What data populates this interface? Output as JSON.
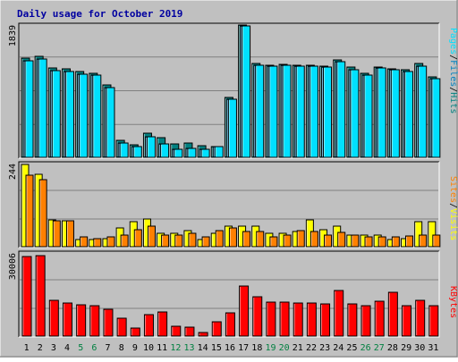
{
  "title": "Daily usage for October 2019",
  "colors": {
    "background": "#c0c0c0",
    "hits": "#008080",
    "files": "#0080c0",
    "pages": "#00e0ff",
    "visits": "#ffff00",
    "sites": "#ff8000",
    "kbytes": "#ff0000",
    "weekend_label": "#008040",
    "weekday_label": "#000000"
  },
  "chart_data": [
    {
      "type": "bar",
      "panel": "hits_files_pages",
      "max_label": "1839",
      "ylim": [
        0,
        1839
      ],
      "legend": [
        "Pages",
        "/",
        "Files",
        "/",
        "Hits"
      ],
      "categories": [
        "1",
        "2",
        "3",
        "4",
        "5",
        "6",
        "7",
        "8",
        "9",
        "10",
        "11",
        "12",
        "13",
        "14",
        "15",
        "16",
        "17",
        "18",
        "19",
        "20",
        "21",
        "22",
        "23",
        "24",
        "25",
        "26",
        "27",
        "28",
        "29",
        "30",
        "31"
      ],
      "series": [
        {
          "name": "Hits",
          "values": [
            1370,
            1395,
            1240,
            1225,
            1185,
            1160,
            1000,
            230,
            170,
            335,
            270,
            180,
            200,
            155,
            150,
            825,
            1825,
            1295,
            1270,
            1280,
            1275,
            1270,
            1260,
            1345,
            1245,
            1160,
            1250,
            1225,
            1210,
            1290,
            1115
          ]
        },
        {
          "name": "Files",
          "values": [
            1330,
            1355,
            1200,
            1190,
            1150,
            1130,
            965,
            200,
            150,
            280,
            190,
            115,
            120,
            105,
            145,
            805,
            1815,
            1270,
            1255,
            1270,
            1265,
            1260,
            1250,
            1320,
            1210,
            1130,
            1230,
            1205,
            1185,
            1260,
            1080
          ]
        },
        {
          "name": "Pages",
          "values": [
            1330,
            1355,
            1200,
            1190,
            1150,
            1130,
            965,
            200,
            150,
            280,
            190,
            115,
            120,
            105,
            145,
            805,
            1815,
            1270,
            1255,
            1270,
            1265,
            1260,
            1250,
            1320,
            1210,
            1130,
            1230,
            1205,
            1185,
            1260,
            1080
          ]
        }
      ]
    },
    {
      "type": "bar",
      "panel": "visits_sites",
      "max_label": "244",
      "ylim": [
        0,
        244
      ],
      "legend": [
        "Sites",
        "/",
        "Visits"
      ],
      "categories": [
        "1",
        "2",
        "3",
        "4",
        "5",
        "6",
        "7",
        "8",
        "9",
        "10",
        "11",
        "12",
        "13",
        "14",
        "15",
        "16",
        "17",
        "18",
        "19",
        "20",
        "21",
        "22",
        "23",
        "24",
        "25",
        "26",
        "27",
        "28",
        "29",
        "30",
        "31"
      ],
      "series": [
        {
          "name": "Visits",
          "values": [
            244,
            215,
            80,
            78,
            22,
            20,
            24,
            55,
            75,
            82,
            40,
            40,
            48,
            22,
            40,
            60,
            62,
            60,
            40,
            40,
            45,
            79,
            50,
            62,
            35,
            35,
            35,
            22,
            25,
            73,
            73
          ]
        },
        {
          "name": "Sites",
          "values": [
            213,
            200,
            76,
            76,
            30,
            25,
            30,
            35,
            50,
            60,
            35,
            35,
            40,
            28,
            47,
            55,
            45,
            45,
            30,
            35,
            48,
            45,
            35,
            43,
            35,
            30,
            30,
            30,
            32,
            35,
            35
          ]
        }
      ]
    },
    {
      "type": "bar",
      "panel": "kbytes",
      "max_label": "30006",
      "ylim": [
        0,
        30006
      ],
      "legend": [
        "KBytes"
      ],
      "categories": [
        "1",
        "2",
        "3",
        "4",
        "5",
        "6",
        "7",
        "8",
        "9",
        "10",
        "11",
        "12",
        "13",
        "14",
        "15",
        "16",
        "17",
        "18",
        "19",
        "20",
        "21",
        "22",
        "23",
        "24",
        "25",
        "26",
        "27",
        "28",
        "29",
        "30",
        "31"
      ],
      "series": [
        {
          "name": "KBytes",
          "values": [
            29000,
            29400,
            13000,
            12000,
            11300,
            11000,
            9800,
            6600,
            2800,
            7800,
            8800,
            3600,
            3300,
            1200,
            5200,
            8600,
            18300,
            14300,
            12300,
            12300,
            12100,
            12200,
            11900,
            16600,
            11700,
            11200,
            12700,
            15900,
            11200,
            13000,
            11200
          ]
        }
      ]
    }
  ]
}
